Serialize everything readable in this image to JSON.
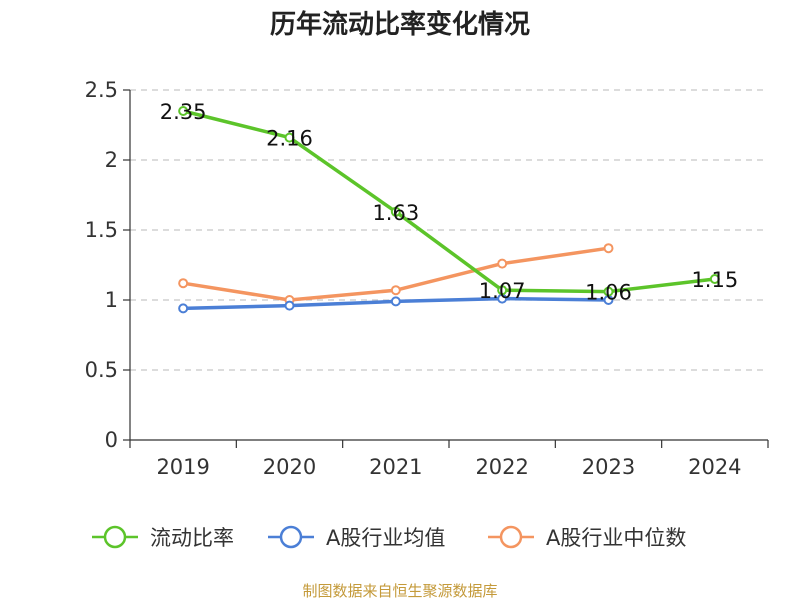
{
  "chart_data": {
    "type": "line",
    "title": "历年流动比率变化情况",
    "categories": [
      "2019",
      "2020",
      "2021",
      "2022",
      "2023",
      "2024"
    ],
    "ylim": [
      0,
      2.5
    ],
    "yticks": [
      "0",
      "0.5",
      "1",
      "1.5",
      "2",
      "2.5"
    ],
    "grid": true,
    "legend_position": "bottom",
    "series": [
      {
        "name": "流动比率",
        "color": "#5cc42a",
        "values": [
          2.35,
          2.16,
          1.63,
          1.07,
          1.06,
          1.15
        ],
        "data_labels": [
          "2.35",
          "2.16",
          "1.63",
          "1.07",
          "1.06",
          "1.15"
        ]
      },
      {
        "name": "A股行业均值",
        "color": "#4b7fd6",
        "values": [
          0.94,
          0.96,
          0.99,
          1.01,
          1.0,
          null
        ]
      },
      {
        "name": "A股行业中位数",
        "color": "#f49560",
        "values": [
          1.12,
          1.0,
          1.07,
          1.26,
          1.37,
          null
        ]
      }
    ]
  },
  "source_text": "制图数据来自恒生聚源数据库"
}
